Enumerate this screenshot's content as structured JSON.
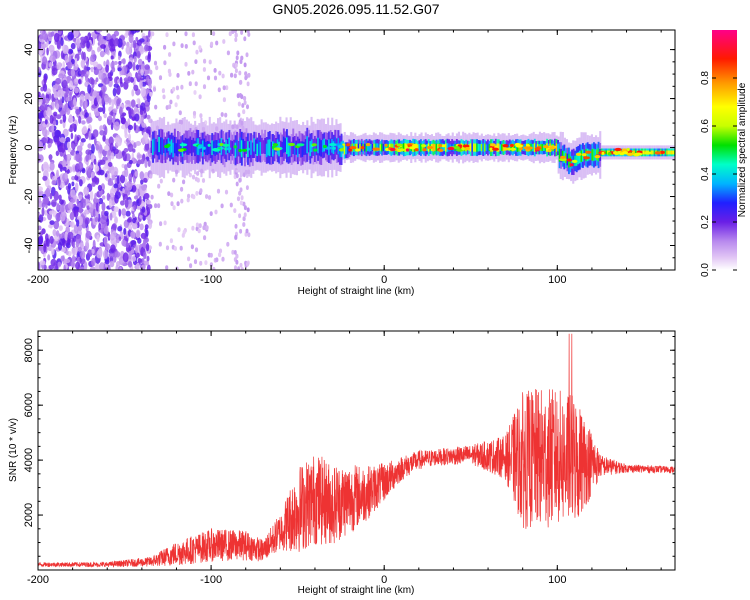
{
  "title": "GN05.2026.095.11.52.G07",
  "chart_data": [
    {
      "type": "heatmap",
      "name": "spectrogram",
      "xlabel": "Height of straight line (km)",
      "ylabel": "Frequency (Hz)",
      "xlim": [
        -200,
        168
      ],
      "ylim": [
        -50,
        48
      ],
      "xticks": [
        -200,
        -100,
        0,
        100
      ],
      "yticks": [
        -40,
        -20,
        0,
        20,
        40
      ],
      "x_tick_labels": [
        "-200",
        "-100",
        "0",
        "100"
      ],
      "y_tick_labels": [
        "-40",
        "-20",
        "0",
        "20",
        "40"
      ],
      "colorbar": {
        "label": "Normalized spectral amplitude",
        "range": [
          0,
          1
        ],
        "ticks": [
          0.0,
          0.2,
          0.4,
          0.6,
          0.8
        ],
        "tick_labels": [
          "0.0",
          "0.2",
          "0.4",
          "0.6",
          "0.8"
        ],
        "colors": [
          "#ffffff",
          "#e3c8f5",
          "#b889ee",
          "#6a1fe6",
          "#2020ff",
          "#00b4ff",
          "#00ffc8",
          "#00e000",
          "#c8ff00",
          "#ffff00",
          "#ff9800",
          "#ff1a00",
          "#ff0088"
        ]
      },
      "regions": [
        {
          "x": [
            -200,
            -135
          ],
          "freq_spread": [
            -50,
            48
          ],
          "amplitude": "low scattered noise (0.0-0.3)"
        },
        {
          "x": [
            -135,
            -25
          ],
          "freq_center": 0,
          "freq_halfwidth": [
            6,
            4
          ],
          "amplitude": "0.2-0.5"
        },
        {
          "x": [
            -25,
            100
          ],
          "freq_center": 0,
          "freq_halfwidth": 3,
          "amplitude": "0.3-0.9, narrowing"
        },
        {
          "x": [
            100,
            125
          ],
          "freq_center": -3,
          "freq_halfwidth": 5,
          "amplitude": "0.3-0.7, dip near 108 km"
        },
        {
          "x": [
            125,
            168
          ],
          "freq_center": -2,
          "freq_halfwidth": 1.5,
          "amplitude": "0.5-0.9"
        }
      ]
    },
    {
      "type": "line",
      "name": "snr",
      "xlabel": "Height of straight line (km)",
      "ylabel": "SNR (10 * v/v)",
      "xlim": [
        -200,
        168
      ],
      "ylim": [
        0,
        8700
      ],
      "xticks": [
        -200,
        -100,
        0,
        100
      ],
      "yticks": [
        2000,
        4000,
        6000,
        8000
      ],
      "x_tick_labels": [
        "-200",
        "-100",
        "0",
        "100"
      ],
      "y_tick_labels": [
        "2000",
        "4000",
        "6000",
        "8000"
      ],
      "series": [
        {
          "name": "SNR",
          "color": "#ee3333",
          "envelope_x": [
            -200,
            -160,
            -135,
            -120,
            -100,
            -80,
            -70,
            -60,
            -50,
            -40,
            -30,
            -20,
            -10,
            0,
            10,
            20,
            30,
            50,
            70,
            80,
            90,
            100,
            110,
            120,
            125,
            140,
            168
          ],
          "envelope_mean": [
            200,
            200,
            300,
            600,
            900,
            900,
            700,
            1400,
            2200,
            2600,
            2400,
            2600,
            2800,
            3200,
            3700,
            4000,
            4100,
            4200,
            4100,
            4000,
            4050,
            4100,
            4000,
            3900,
            3800,
            3700,
            3650
          ],
          "envelope_amp": [
            80,
            90,
            180,
            450,
            600,
            550,
            400,
            700,
            1600,
            1700,
            1500,
            1300,
            1000,
            700,
            450,
            350,
            300,
            350,
            800,
            2500,
            2600,
            2500,
            2400,
            1200,
            400,
            150,
            120
          ]
        }
      ]
    }
  ]
}
